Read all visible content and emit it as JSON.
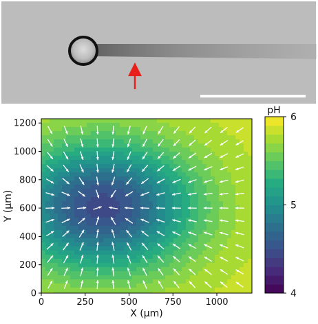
{
  "micrograph": {
    "background_color": "#b8b8b8",
    "bead_color": "#111111",
    "streak_color": "#7a7a7a",
    "arrow_color": "#e8201c",
    "scale_bar_color": "#ffffff"
  },
  "chart_data": {
    "type": "heatmap",
    "title": "",
    "xlabel": "X (μm)",
    "ylabel": "Y (μm)",
    "xlim": [
      0,
      1200
    ],
    "ylim": [
      0,
      1230
    ],
    "xticks": [
      0,
      250,
      500,
      750,
      1000
    ],
    "yticks": [
      0,
      200,
      400,
      600,
      800,
      1000,
      1200
    ],
    "colorbar": {
      "label": "pH",
      "range": [
        4,
        6
      ],
      "ticks": [
        4,
        5,
        6
      ],
      "levels": 20,
      "colormap": "viridis"
    },
    "field": {
      "description_source": "contour of pH, minimum near center, quiver arrows pointing toward sink",
      "sink_x": 350,
      "sink_y": 610,
      "min_ph": 4.45,
      "max_ph": 5.85,
      "grid_x": [
        50,
        140,
        230,
        320,
        410,
        500,
        590,
        680,
        770,
        860,
        950,
        1040,
        1130
      ],
      "grid_y": [
        60,
        150,
        240,
        330,
        420,
        510,
        600,
        700,
        790,
        880,
        970,
        1060,
        1150
      ],
      "arrow_color": "#ffffff"
    }
  }
}
